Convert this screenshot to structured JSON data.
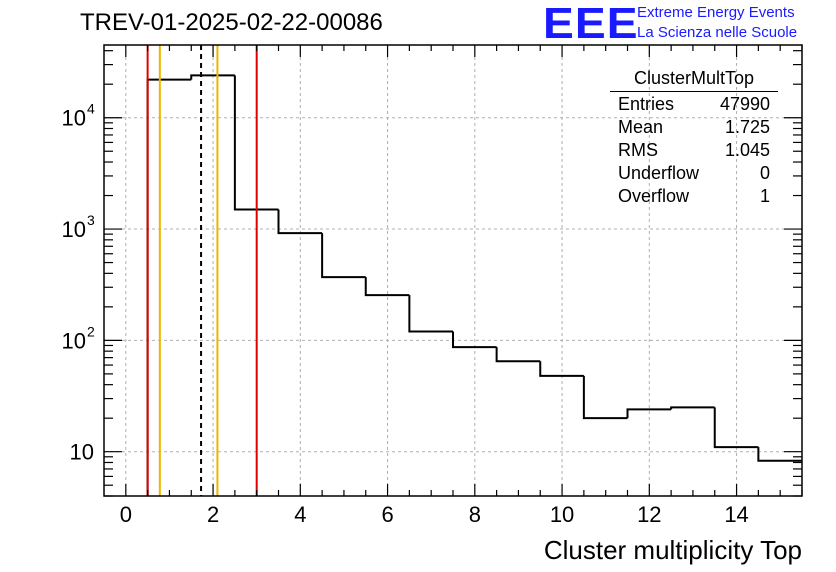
{
  "title": "TREV-01-2025-02-22-00086",
  "logo": {
    "text": "EEE",
    "line1": "Extreme Energy Events",
    "line2": "La Scienza nelle Scuole",
    "color": "#1a1aff"
  },
  "stats": {
    "title": "ClusterMultTop",
    "rows": [
      {
        "label": "Entries",
        "value": "47990"
      },
      {
        "label": "Mean",
        "value": "1.725"
      },
      {
        "label": "RMS",
        "value": "1.045"
      },
      {
        "label": "Underflow",
        "value": "0"
      },
      {
        "label": "Overflow",
        "value": "1"
      }
    ]
  },
  "chart_data": {
    "type": "histogram",
    "title": "TREV-01-2025-02-22-00086",
    "xlabel": "Cluster multiplicity Top",
    "ylabel": "",
    "xlim": [
      -0.5,
      15.5
    ],
    "ylim": [
      4,
      45000
    ],
    "yscale": "log",
    "grid": true,
    "bin_edges": [
      0.5,
      1.5,
      2.5,
      3.5,
      4.5,
      5.5,
      6.5,
      7.5,
      8.5,
      9.5,
      10.5,
      11.5,
      12.5,
      13.5,
      14.5,
      15.5
    ],
    "values": [
      22000,
      24000,
      1500,
      920,
      370,
      255,
      120,
      87,
      65,
      48,
      20,
      24,
      25,
      11,
      8.3
    ],
    "x_ticks": [
      0,
      2,
      4,
      6,
      8,
      10,
      12,
      14
    ],
    "x_tick_labels": [
      "0",
      "2",
      "4",
      "6",
      "8",
      "10",
      "12",
      "14"
    ],
    "y_ticks": [
      10,
      100,
      1000,
      10000
    ],
    "y_tick_labels": [
      {
        "base": "10",
        "exp": ""
      },
      {
        "base": "10",
        "exp": "2"
      },
      {
        "base": "10",
        "exp": "3"
      },
      {
        "base": "10",
        "exp": "4"
      }
    ],
    "vertical_lines": [
      {
        "x": 0.5,
        "color": "#e00000",
        "style": "solid"
      },
      {
        "x": 0.78,
        "color": "#f0b400",
        "style": "solid"
      },
      {
        "x": 1.725,
        "color": "#000000",
        "style": "dashed"
      },
      {
        "x": 2.1,
        "color": "#f0b400",
        "style": "solid"
      },
      {
        "x": 3.0,
        "color": "#e00000",
        "style": "solid"
      }
    ]
  }
}
